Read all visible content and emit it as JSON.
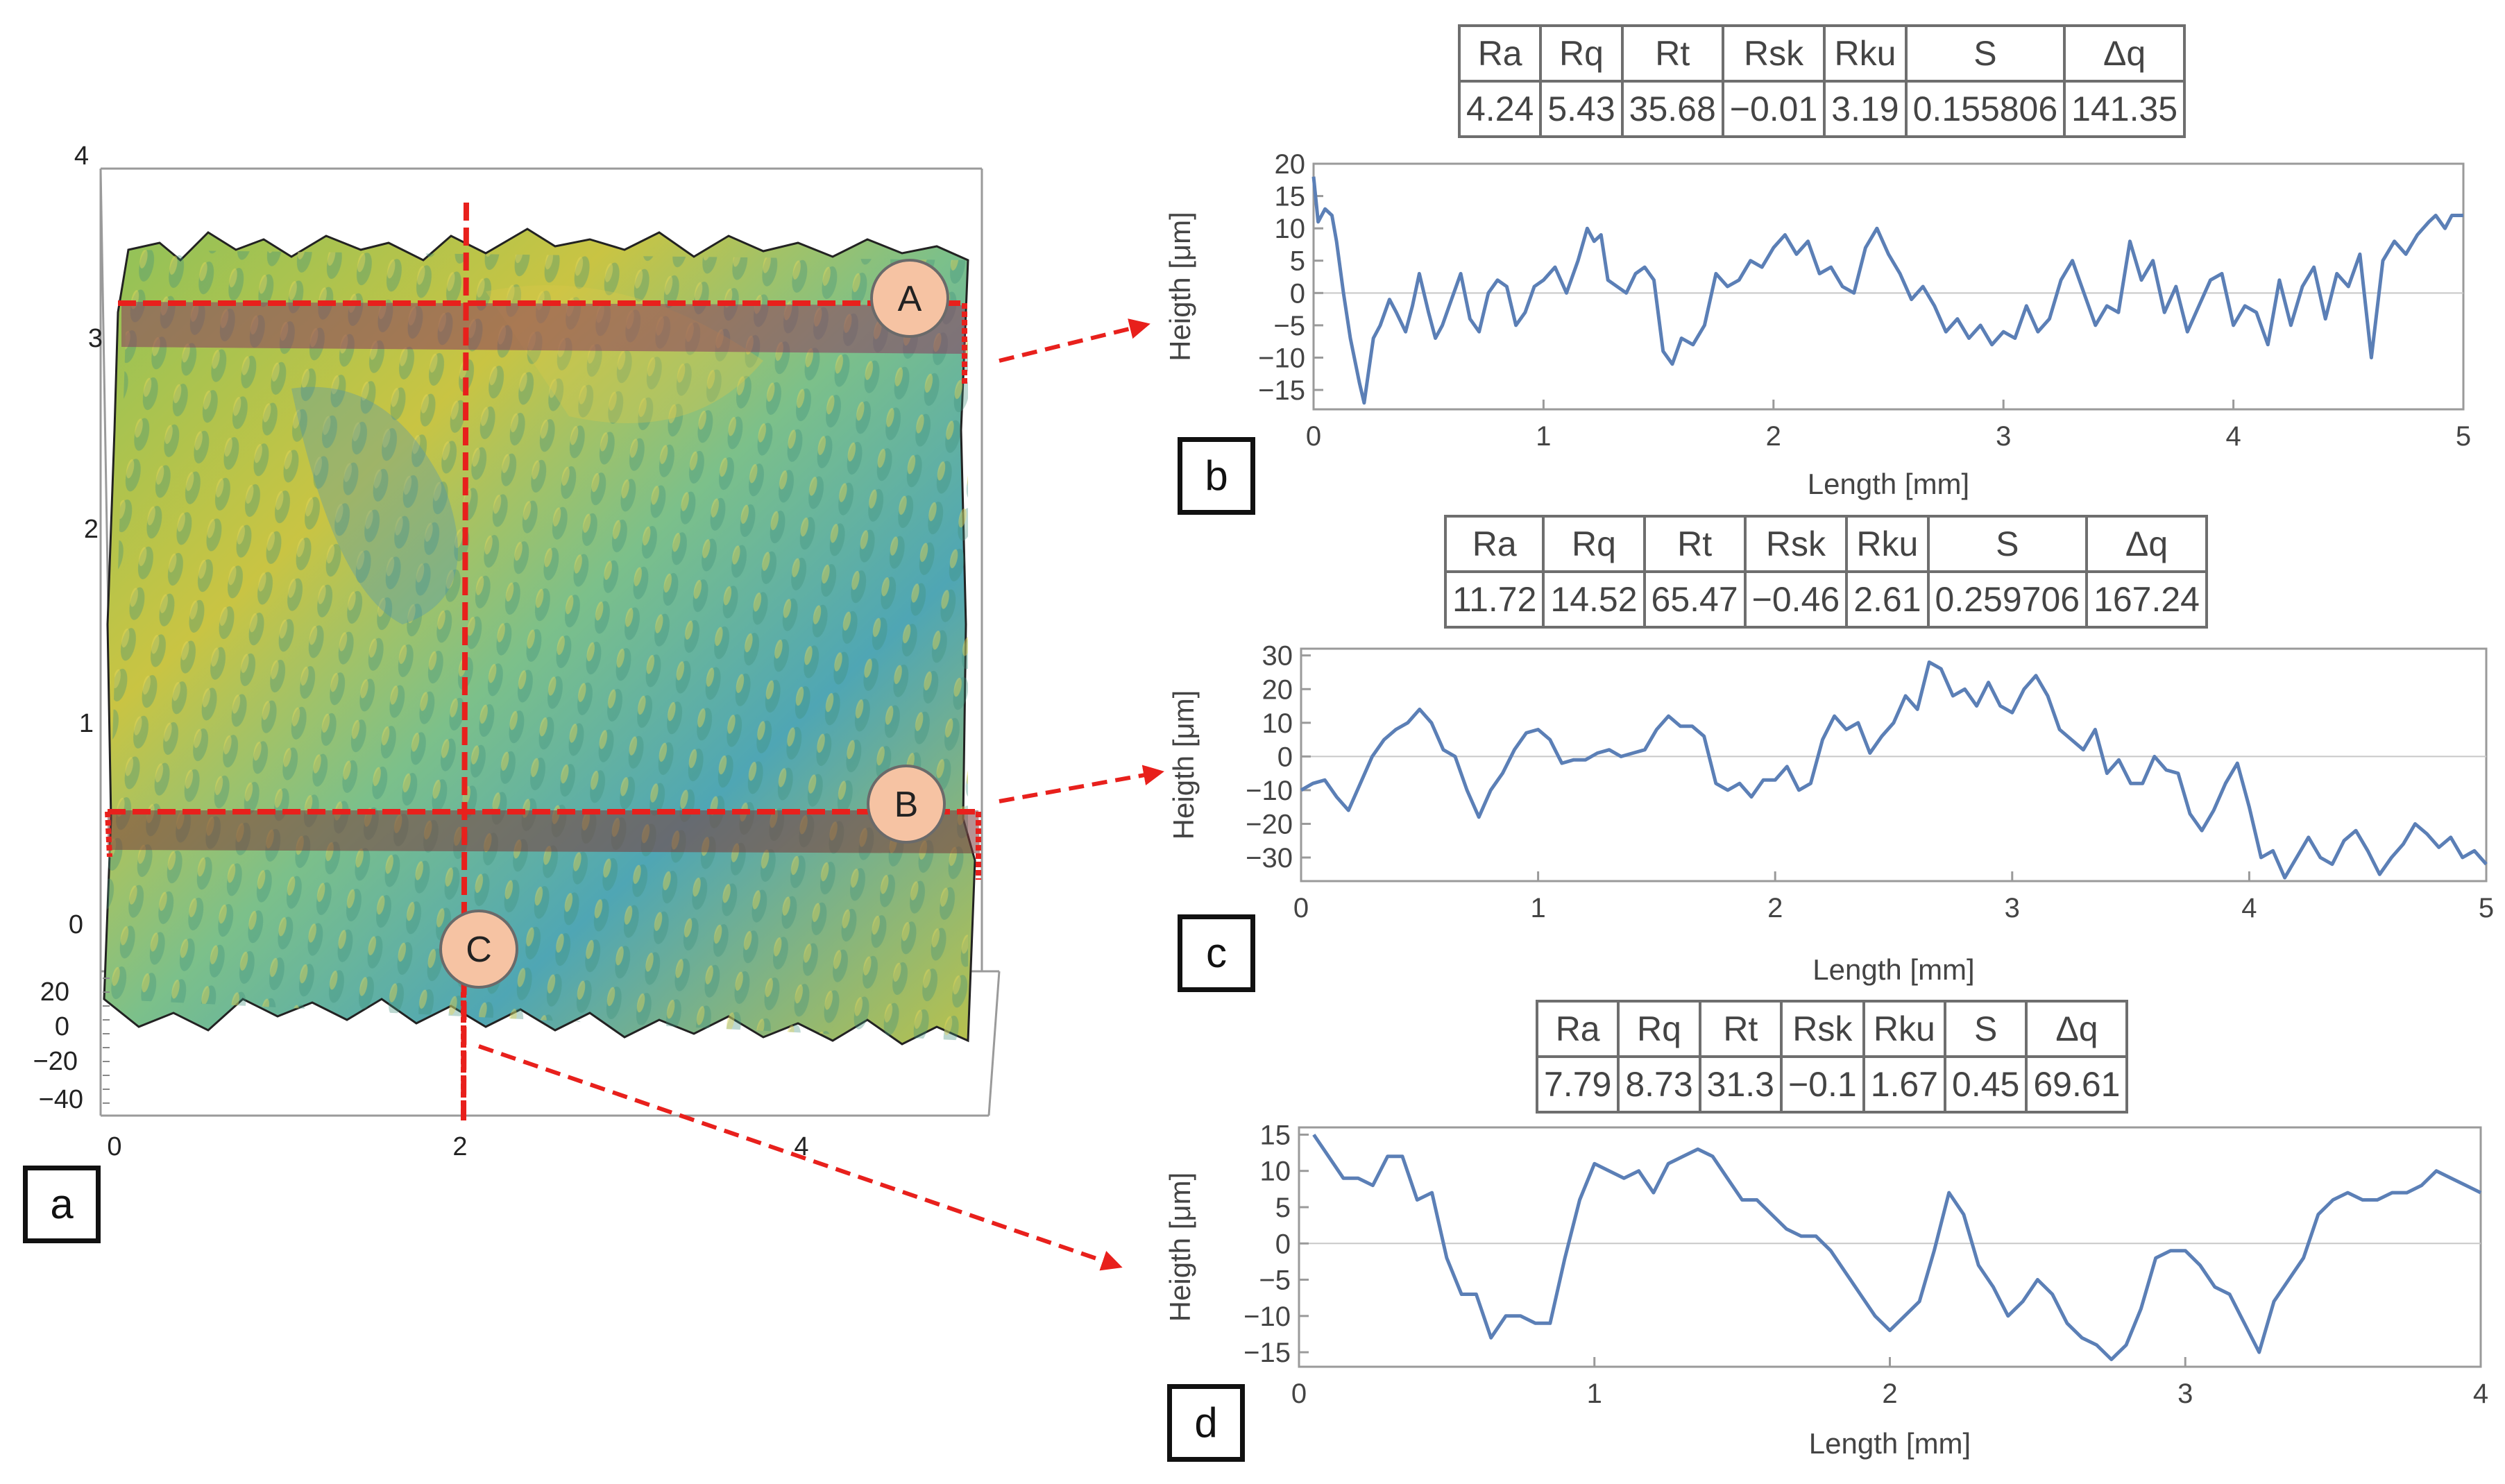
{
  "panel_labels": {
    "a": "a",
    "b": "b",
    "c": "c",
    "d": "d"
  },
  "surface_3d": {
    "x_ticks": [
      "0",
      "2",
      "4"
    ],
    "y_ticks": [
      "0",
      "1",
      "2",
      "3",
      "4"
    ],
    "z_ticks": [
      "20",
      "0",
      "−20",
      "−40"
    ],
    "markers": {
      "A": "A",
      "B": "B",
      "C": "C"
    },
    "colors": {
      "section_line": "#e8201c",
      "marker_fill": "#f6c3a3",
      "marker_stroke": "#6a6a6a"
    }
  },
  "param_headers": [
    "Ra",
    "Rq",
    "Rt",
    "Rsk",
    "Rku",
    "S",
    "Δq"
  ],
  "tables": {
    "b": [
      "4.24",
      "5.43",
      "35.68",
      "−0.01",
      "3.19",
      "0.155806",
      "141.35"
    ],
    "c": [
      "11.72",
      "14.52",
      "65.47",
      "−0.46",
      "2.61",
      "0.259706",
      "167.24"
    ],
    "d": [
      "7.79",
      "8.73",
      "31.3",
      "−0.1",
      "1.67",
      "0.45",
      "69.61"
    ]
  },
  "chart_data": [
    {
      "id": "b",
      "type": "line",
      "title": "",
      "xlabel": "Length [mm]",
      "ylabel": "Heigth [μm]",
      "xlim": [
        0,
        5
      ],
      "ylim": [
        -18,
        20
      ],
      "xticks": [
        0,
        1,
        2,
        3,
        4,
        5
      ],
      "yticks": [
        -15,
        -10,
        -5,
        0,
        5,
        10,
        15,
        20
      ],
      "color": "#5b7fb6",
      "x": [
        0,
        0.02,
        0.05,
        0.08,
        0.1,
        0.13,
        0.16,
        0.2,
        0.22,
        0.24,
        0.26,
        0.29,
        0.33,
        0.36,
        0.4,
        0.43,
        0.46,
        0.5,
        0.53,
        0.56,
        0.6,
        0.64,
        0.68,
        0.72,
        0.76,
        0.8,
        0.84,
        0.88,
        0.92,
        0.96,
        1.0,
        1.05,
        1.1,
        1.15,
        1.19,
        1.22,
        1.25,
        1.28,
        1.32,
        1.36,
        1.4,
        1.44,
        1.48,
        1.52,
        1.56,
        1.6,
        1.65,
        1.7,
        1.75,
        1.8,
        1.85,
        1.9,
        1.95,
        2.0,
        2.05,
        2.1,
        2.15,
        2.2,
        2.25,
        2.3,
        2.35,
        2.4,
        2.45,
        2.5,
        2.55,
        2.6,
        2.65,
        2.7,
        2.75,
        2.8,
        2.85,
        2.9,
        2.95,
        3.0,
        3.05,
        3.1,
        3.15,
        3.2,
        3.25,
        3.3,
        3.35,
        3.4,
        3.45,
        3.5,
        3.55,
        3.6,
        3.65,
        3.7,
        3.75,
        3.8,
        3.85,
        3.9,
        3.95,
        4.0,
        4.05,
        4.1,
        4.15,
        4.2,
        4.25,
        4.3,
        4.35,
        4.4,
        4.45,
        4.5,
        4.55,
        4.6,
        4.65,
        4.7,
        4.75,
        4.8,
        4.85,
        4.88,
        4.92,
        4.95,
        5.0
      ],
      "values": [
        18,
        11,
        13,
        12,
        8,
        0,
        -7,
        -14,
        -17,
        -12,
        -7,
        -5,
        -1,
        -3,
        -6,
        -2,
        3,
        -3,
        -7,
        -5,
        -1,
        3,
        -4,
        -6,
        0,
        2,
        1,
        -5,
        -3,
        1,
        2,
        4,
        0,
        5,
        10,
        8,
        9,
        2,
        1,
        0,
        3,
        4,
        2,
        -9,
        -11,
        -7,
        -8,
        -5,
        3,
        1,
        2,
        5,
        4,
        7,
        9,
        6,
        8,
        3,
        4,
        1,
        0,
        7,
        10,
        6,
        3,
        -1,
        1,
        -2,
        -6,
        -4,
        -7,
        -5,
        -8,
        -6,
        -7,
        -2,
        -6,
        -4,
        2,
        5,
        0,
        -5,
        -2,
        -3,
        8,
        2,
        5,
        -3,
        1,
        -6,
        -2,
        2,
        3,
        -5,
        -2,
        -3,
        -8,
        2,
        -5,
        1,
        4,
        -4,
        3,
        1,
        6,
        -10,
        5,
        8,
        6,
        9,
        11,
        12,
        10,
        12,
        12
      ]
    },
    {
      "id": "c",
      "type": "line",
      "title": "",
      "xlabel": "Length [mm]",
      "ylabel": "Heigth [μm]",
      "xlim": [
        0,
        5
      ],
      "ylim": [
        -37,
        32
      ],
      "xticks": [
        0,
        1,
        2,
        3,
        4,
        5
      ],
      "yticks": [
        -30,
        -20,
        -10,
        0,
        10,
        20,
        30
      ],
      "color": "#5b7fb6",
      "x": [
        0,
        0.05,
        0.1,
        0.15,
        0.2,
        0.25,
        0.3,
        0.35,
        0.4,
        0.45,
        0.5,
        0.55,
        0.6,
        0.65,
        0.7,
        0.75,
        0.8,
        0.85,
        0.9,
        0.95,
        1.0,
        1.05,
        1.1,
        1.15,
        1.2,
        1.25,
        1.3,
        1.35,
        1.4,
        1.45,
        1.5,
        1.55,
        1.6,
        1.65,
        1.7,
        1.75,
        1.8,
        1.85,
        1.9,
        1.95,
        2.0,
        2.05,
        2.1,
        2.15,
        2.2,
        2.25,
        2.3,
        2.35,
        2.4,
        2.45,
        2.5,
        2.55,
        2.6,
        2.65,
        2.7,
        2.75,
        2.8,
        2.85,
        2.9,
        2.95,
        3.0,
        3.05,
        3.1,
        3.15,
        3.2,
        3.25,
        3.3,
        3.35,
        3.4,
        3.45,
        3.5,
        3.55,
        3.6,
        3.65,
        3.7,
        3.75,
        3.8,
        3.85,
        3.9,
        3.95,
        4.0,
        4.05,
        4.1,
        4.15,
        4.2,
        4.25,
        4.3,
        4.35,
        4.4,
        4.45,
        4.5,
        4.55,
        4.6,
        4.65,
        4.7,
        4.75,
        4.8,
        4.85,
        4.9,
        4.95,
        5.0
      ],
      "values": [
        -10,
        -8,
        -7,
        -12,
        -16,
        -8,
        0,
        5,
        8,
        10,
        14,
        10,
        2,
        0,
        -10,
        -18,
        -10,
        -5,
        2,
        7,
        8,
        5,
        -2,
        -1,
        -1,
        1,
        2,
        0,
        1,
        2,
        8,
        12,
        9,
        9,
        6,
        -8,
        -10,
        -8,
        -12,
        -7,
        -7,
        -3,
        -10,
        -8,
        5,
        12,
        8,
        10,
        1,
        6,
        10,
        18,
        14,
        28,
        26,
        18,
        20,
        15,
        22,
        15,
        13,
        20,
        24,
        18,
        8,
        5,
        2,
        8,
        -5,
        -1,
        -8,
        -8,
        0,
        -4,
        -5,
        -17,
        -22,
        -16,
        -8,
        -2,
        -15,
        -30,
        -28,
        -36,
        -30,
        -24,
        -30,
        -32,
        -25,
        -22,
        -28,
        -35,
        -30,
        -26,
        -20,
        -23,
        -27,
        -24,
        -30,
        -28,
        -32
      ]
    },
    {
      "id": "d",
      "type": "line",
      "title": "",
      "xlabel": "Length [mm]",
      "ylabel": "Heigth [μm]",
      "xlim": [
        0,
        4
      ],
      "ylim": [
        -17,
        16
      ],
      "xticks": [
        0,
        1,
        2,
        3,
        4
      ],
      "yticks": [
        -15,
        -10,
        -5,
        0,
        5,
        10,
        15
      ],
      "color": "#5b7fb6",
      "x": [
        0.05,
        0.1,
        0.15,
        0.2,
        0.25,
        0.3,
        0.35,
        0.4,
        0.45,
        0.5,
        0.55,
        0.6,
        0.65,
        0.7,
        0.75,
        0.8,
        0.85,
        0.9,
        0.95,
        1.0,
        1.05,
        1.1,
        1.15,
        1.2,
        1.25,
        1.3,
        1.35,
        1.4,
        1.45,
        1.5,
        1.55,
        1.6,
        1.65,
        1.7,
        1.75,
        1.8,
        1.85,
        1.9,
        1.95,
        2.0,
        2.05,
        2.1,
        2.15,
        2.2,
        2.25,
        2.3,
        2.35,
        2.4,
        2.45,
        2.5,
        2.55,
        2.6,
        2.65,
        2.7,
        2.75,
        2.8,
        2.85,
        2.9,
        2.95,
        3.0,
        3.05,
        3.1,
        3.15,
        3.2,
        3.25,
        3.3,
        3.35,
        3.4,
        3.45,
        3.5,
        3.55,
        3.6,
        3.65,
        3.7,
        3.75,
        3.8,
        3.85,
        3.9,
        3.95,
        4.0
      ],
      "values": [
        15,
        12,
        9,
        9,
        8,
        12,
        12,
        6,
        7,
        -2,
        -7,
        -7,
        -13,
        -10,
        -10,
        -11,
        -11,
        -2,
        6,
        11,
        10,
        9,
        10,
        7,
        11,
        12,
        13,
        12,
        9,
        6,
        6,
        4,
        2,
        1,
        1,
        -1,
        -4,
        -7,
        -10,
        -12,
        -10,
        -8,
        -1,
        7,
        4,
        -3,
        -6,
        -10,
        -8,
        -5,
        -7,
        -11,
        -13,
        -14,
        -16,
        -14,
        -9,
        -2,
        -1,
        -1,
        -3,
        -6,
        -7,
        -11,
        -15,
        -8,
        -5,
        -2,
        4,
        6,
        7,
        6,
        6,
        7,
        7,
        8,
        10,
        9,
        8,
        7
      ]
    }
  ]
}
